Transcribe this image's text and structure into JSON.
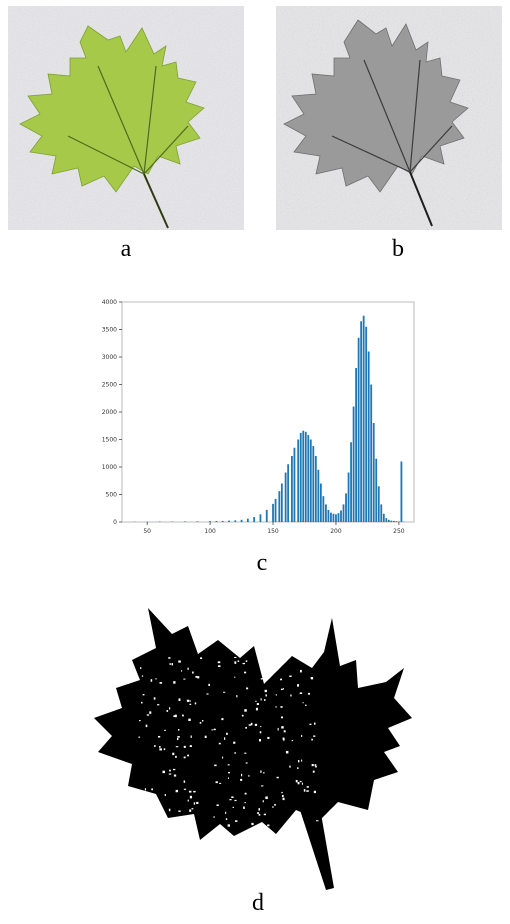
{
  "figure": {
    "labels": {
      "a": "a",
      "b": "b",
      "c": "c",
      "d": "d"
    }
  },
  "colors": {
    "leaf_green": "#a6c94a",
    "leaf_gray": "#9a9a9a",
    "background_noise": "#e8e8ec",
    "hist_bar": "#1f77b4",
    "binary_leaf": "#000000"
  },
  "chart_data": {
    "type": "bar",
    "title": "",
    "xlabel": "",
    "ylabel": "",
    "xlim": [
      30,
      262
    ],
    "ylim": [
      0,
      4000
    ],
    "xticks": [
      50,
      100,
      150,
      200,
      250
    ],
    "yticks": [
      0,
      500,
      1000,
      1500,
      2000,
      2500,
      3000,
      3500,
      4000
    ],
    "x": [
      40,
      50,
      60,
      70,
      80,
      90,
      100,
      105,
      110,
      115,
      120,
      125,
      130,
      135,
      140,
      145,
      150,
      152,
      155,
      157,
      160,
      162,
      165,
      167,
      170,
      172,
      174,
      176,
      178,
      180,
      182,
      184,
      186,
      188,
      190,
      192,
      194,
      196,
      198,
      200,
      202,
      204,
      206,
      208,
      210,
      212,
      214,
      216,
      218,
      220,
      222,
      224,
      226,
      228,
      230,
      232,
      234,
      236,
      238,
      240,
      242,
      244,
      246,
      248,
      250,
      252,
      254
    ],
    "values": [
      5,
      5,
      8,
      8,
      10,
      12,
      15,
      18,
      20,
      25,
      30,
      40,
      60,
      90,
      140,
      220,
      330,
      420,
      560,
      700,
      900,
      1050,
      1200,
      1350,
      1500,
      1620,
      1660,
      1640,
      1580,
      1500,
      1380,
      1200,
      950,
      700,
      470,
      320,
      220,
      170,
      150,
      140,
      160,
      210,
      320,
      520,
      900,
      1450,
      2100,
      2800,
      3350,
      3650,
      3750,
      3550,
      3100,
      2500,
      1800,
      1150,
      650,
      320,
      150,
      70,
      40,
      25,
      20,
      15,
      10,
      1100,
      5
    ]
  }
}
